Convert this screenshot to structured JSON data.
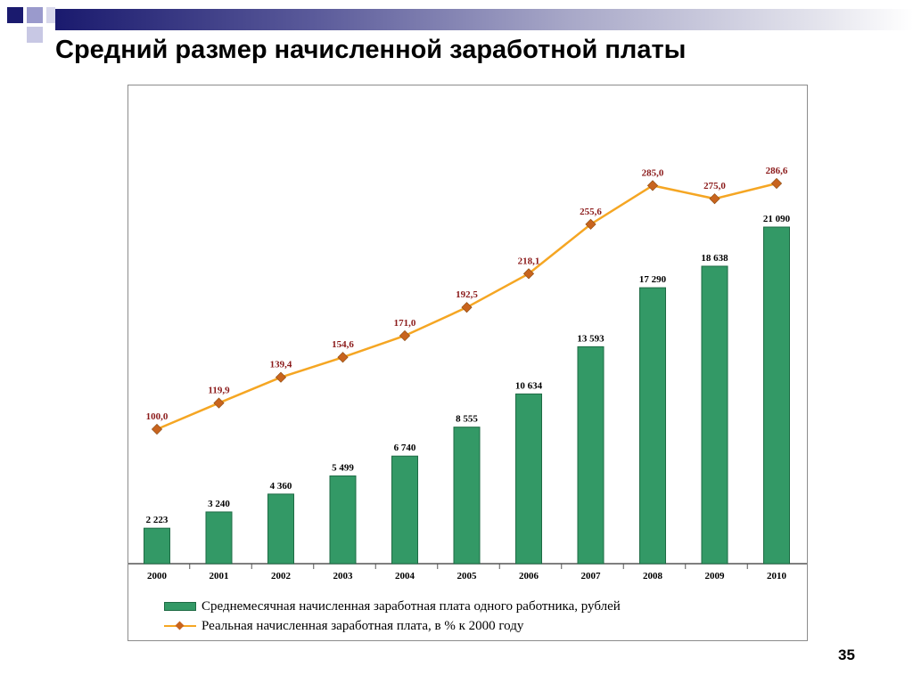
{
  "slide": {
    "title": "Средний размер начисленной заработной платы",
    "page_number": "35"
  },
  "colors": {
    "bar": "#339966",
    "bar_border": "#1e6b44",
    "line": "#f5a623",
    "marker": "#c8641e",
    "line_label": "#8b1a1a",
    "bar_label": "#000000"
  },
  "chart_data": {
    "type": "bar",
    "categories": [
      "2000",
      "2001",
      "2002",
      "2003",
      "2004",
      "2005",
      "2006",
      "2007",
      "2008",
      "2009",
      "2010"
    ],
    "series": [
      {
        "name": "Среднемесячная начисленная заработная плата одного работника, рублей",
        "type": "bar",
        "values": [
          2223,
          3240,
          4360,
          5499,
          6740,
          8555,
          10634,
          13593,
          17290,
          18638,
          21090
        ],
        "labels": [
          "2 223",
          "3 240",
          "4 360",
          "5 499",
          "6 740",
          "8 555",
          "10 634",
          "13 593",
          "17 290",
          "18 638",
          "21 090"
        ]
      },
      {
        "name": "Реальная начисленная заработная плата, в % к 2000 году",
        "type": "line",
        "values": [
          100.0,
          119.9,
          139.4,
          154.6,
          171.0,
          192.5,
          218.1,
          255.6,
          285.0,
          275.0,
          286.6
        ],
        "labels": [
          "100,0",
          "119,9",
          "139,4",
          "154,6",
          "171,0",
          "192,5",
          "218,1",
          "255,6",
          "285,0",
          "275,0",
          "286,6"
        ]
      }
    ],
    "title": "",
    "xlabel": "",
    "ylabel": "",
    "grid": false,
    "legend_position": "bottom"
  }
}
